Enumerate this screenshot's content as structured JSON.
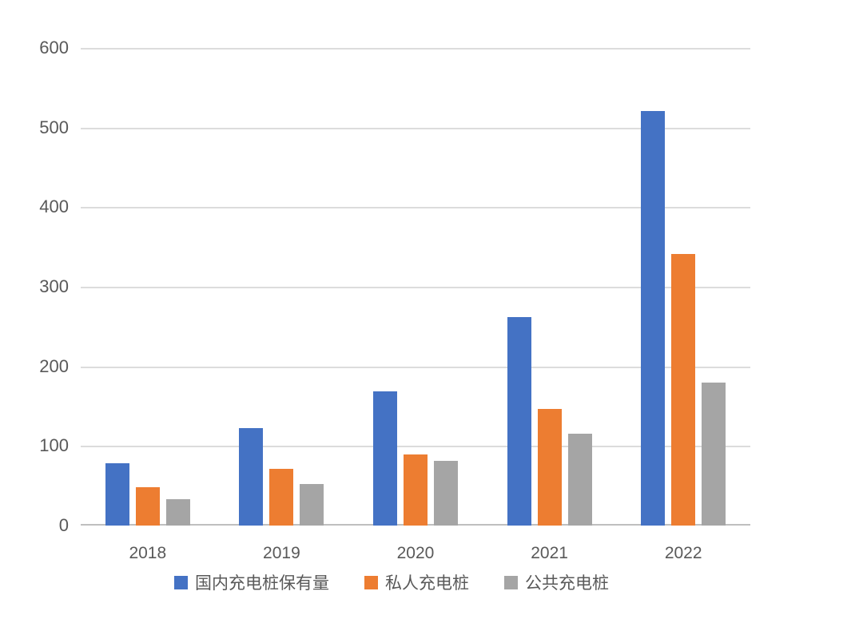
{
  "chart_data": {
    "type": "bar",
    "title": "",
    "xlabel": "",
    "ylabel": "",
    "categories": [
      "2018",
      "2019",
      "2020",
      "2021",
      "2022"
    ],
    "series": [
      {
        "name": "国内充电桩保有量",
        "color": "#4472C4",
        "values": [
          78,
          122,
          169,
          262,
          521
        ]
      },
      {
        "name": "私人充电桩",
        "color": "#ED7D31",
        "values": [
          48,
          71,
          89,
          147,
          341
        ]
      },
      {
        "name": "公共充电桩",
        "color": "#A5A5A5",
        "values": [
          33,
          52,
          81,
          115,
          180
        ]
      }
    ],
    "ylim": [
      0,
      600
    ],
    "yticks": [
      0,
      100,
      200,
      300,
      400,
      500,
      600
    ],
    "grid": true,
    "legend_position": "bottom"
  },
  "colors": {
    "background": "#FFFFFF",
    "gridline": "#DCDCDC",
    "axis_line": "#BFBFBF",
    "label_text": "#595959"
  }
}
